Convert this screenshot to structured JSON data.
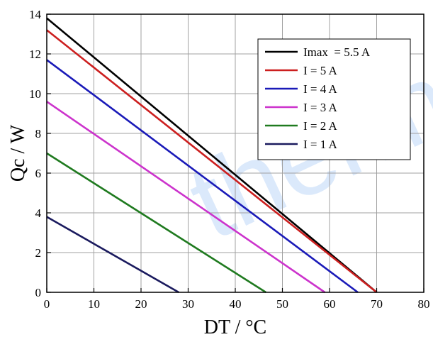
{
  "watermark": "therm",
  "chart_data": {
    "type": "line",
    "title": "",
    "xlabel": "DT / °C",
    "ylabel": "Qc / W",
    "xlim": [
      0,
      80
    ],
    "ylim": [
      0,
      14
    ],
    "xticks": [
      0,
      10,
      20,
      30,
      40,
      50,
      60,
      70,
      80
    ],
    "yticks": [
      0,
      2,
      4,
      6,
      8,
      10,
      12,
      14
    ],
    "grid": true,
    "legend_position": "top-right",
    "series": [
      {
        "name": "Imax  = 5.5 A",
        "color": "#000000",
        "x": [
          0,
          70
        ],
        "y": [
          13.8,
          0
        ]
      },
      {
        "name": "I = 5 A",
        "color": "#cc1f1f",
        "x": [
          0,
          70
        ],
        "y": [
          13.2,
          0
        ]
      },
      {
        "name": "I = 4 A",
        "color": "#1a1ab8",
        "x": [
          0,
          66
        ],
        "y": [
          11.7,
          0
        ]
      },
      {
        "name": "I = 3 A",
        "color": "#cc33cc",
        "x": [
          0,
          59
        ],
        "y": [
          9.6,
          0
        ]
      },
      {
        "name": "I = 2 A",
        "color": "#1f7a1f",
        "x": [
          0,
          46.5
        ],
        "y": [
          7.0,
          0
        ]
      },
      {
        "name": "I = 1 A",
        "color": "#1a1a5e",
        "x": [
          0,
          28
        ],
        "y": [
          3.8,
          0
        ]
      }
    ]
  }
}
